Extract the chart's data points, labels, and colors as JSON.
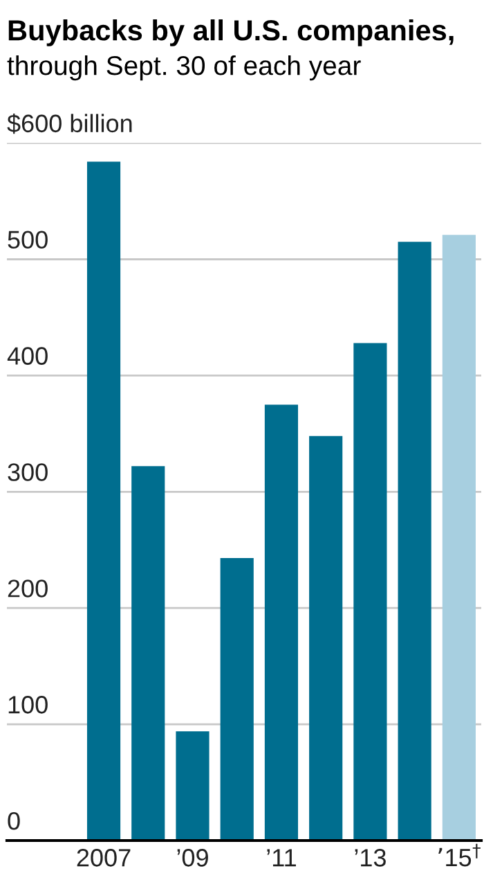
{
  "chart_data": {
    "type": "bar",
    "title": "Buybacks by all U.S. companies,",
    "subtitle": "through Sept. 30 of each year",
    "categories": [
      "2007",
      null,
      "’09",
      null,
      "’11",
      null,
      "’13",
      null,
      "’15$^{†}$"
    ],
    "values": [
      584,
      322,
      94,
      243,
      375,
      348,
      428,
      515,
      521
    ],
    "colors": [
      "#006e8f",
      "#006e8f",
      "#006e8f",
      "#006e8f",
      "#006e8f",
      "#006e8f",
      "#006e8f",
      "#006e8f",
      "#a7cfe0"
    ],
    "ylim": [
      0,
      600
    ],
    "yticks": [
      0,
      100,
      200,
      300,
      400,
      500,
      {
        "value": 600,
        "label": "$600 billion"
      }
    ],
    "grid": "y"
  }
}
